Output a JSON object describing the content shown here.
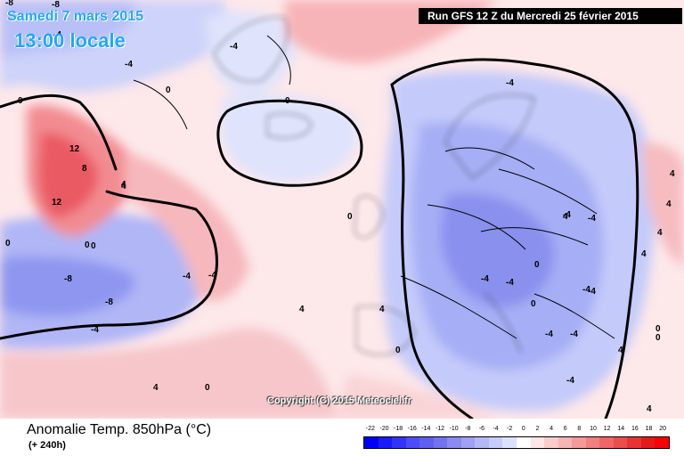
{
  "header": {
    "date": "Samedi 7 mars 2015",
    "time": "13:00 locale",
    "run": "Run GFS 12 Z du Mercredi 25 février 2015"
  },
  "copyright": "Copyright (C) 2015 Meteociel.fr",
  "footer": {
    "title": "Anomalie Temp. 850hPa (°C)",
    "lead": "(+ 240h)"
  },
  "colorscale": {
    "labels": [
      "-22",
      "-20",
      "-18",
      "-16",
      "-14",
      "-12",
      "-10",
      "-8",
      "-6",
      "-4",
      "-2",
      "0",
      "2",
      "4",
      "6",
      "8",
      "10",
      "12",
      "14",
      "16",
      "18",
      "20"
    ],
    "colors": [
      "#0000ff",
      "#1a1aff",
      "#3333ff",
      "#4d4dff",
      "#6060f0",
      "#7373f0",
      "#8a8af2",
      "#a0a0f5",
      "#b4b8f8",
      "#c8ccfa",
      "#dde2fc",
      "#ffffff",
      "#fde6e6",
      "#fbcccc",
      "#f8b3b3",
      "#f59999",
      "#f28080",
      "#ef6666",
      "#ec4d4d",
      "#e93333",
      "#e61a1a",
      "#ff0000"
    ]
  },
  "contour_labels": [
    "-8",
    "-4",
    "0",
    "-4",
    "-4",
    "0",
    "0",
    "4",
    "0",
    "12",
    "8",
    "4",
    "12",
    "0",
    "-4",
    "0",
    "4",
    "0",
    "-8",
    "-4",
    "-4",
    "4",
    "4",
    "-4",
    "-4",
    "4",
    "-4",
    "-4",
    "0",
    "0",
    "4",
    "0",
    "-4",
    "4",
    "4",
    "0",
    "-4",
    "4",
    "0",
    "-8",
    "-8",
    "-4",
    "-4",
    "-4",
    "-4",
    "4",
    "4",
    "0"
  ]
}
